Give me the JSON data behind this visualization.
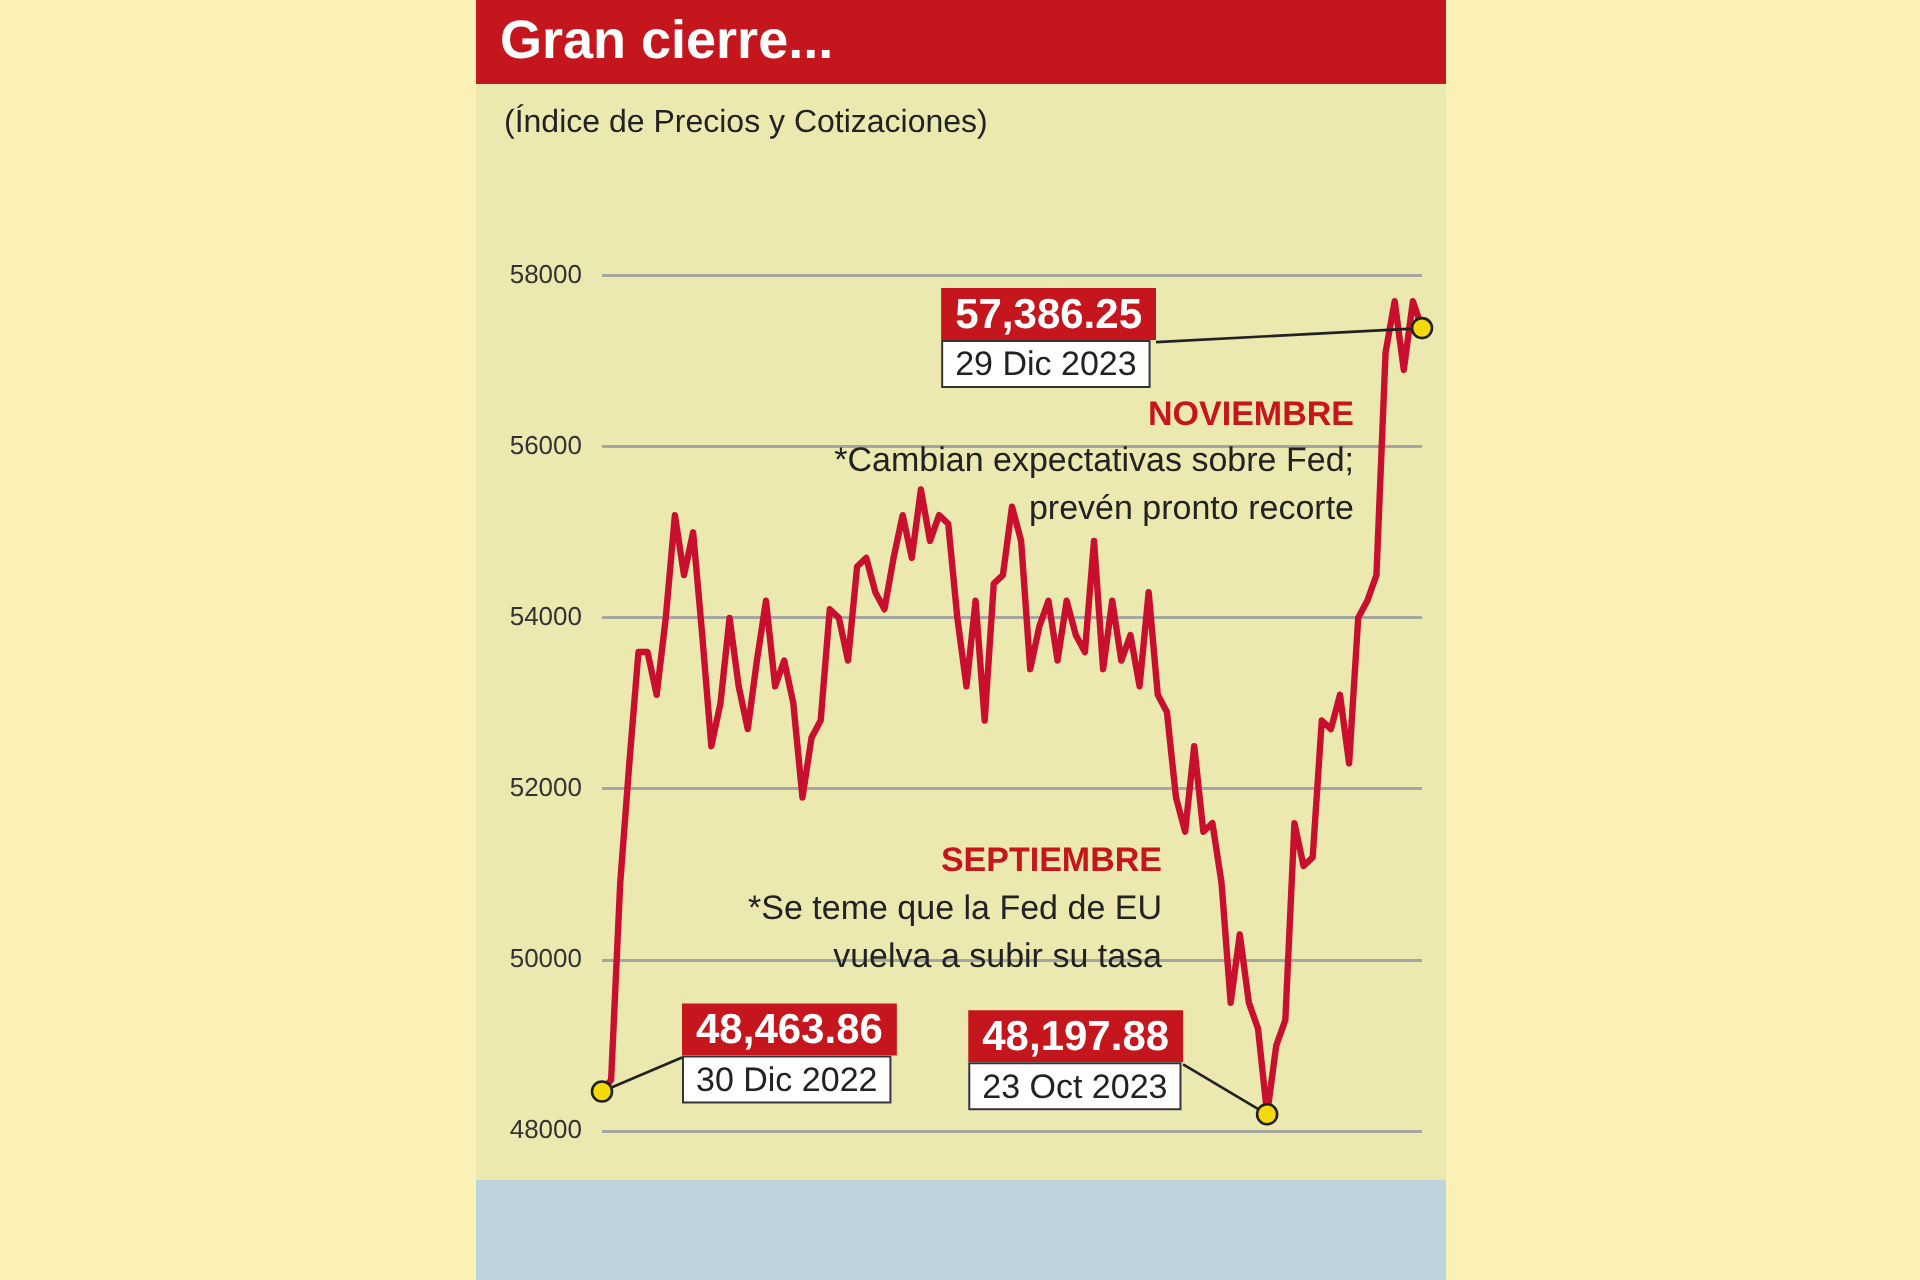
{
  "chart_data": {
    "type": "line",
    "title": "Gran cierre...",
    "subtitle": "(Índice de Precios y Cotizaciones)",
    "categories": [
      null,
      null,
      null,
      null,
      null,
      null,
      null,
      null,
      null,
      null,
      null,
      null,
      null,
      null,
      null,
      null,
      null,
      null,
      null,
      null,
      null,
      null,
      null,
      null,
      null,
      null,
      null,
      null,
      null,
      null,
      null,
      null,
      null,
      null,
      null,
      null,
      null,
      null,
      null,
      null,
      null,
      null,
      null,
      null,
      null,
      null,
      null,
      null,
      null,
      null,
      null,
      null,
      null,
      null,
      null,
      null,
      null,
      null,
      null,
      null,
      null,
      null,
      null,
      null,
      null,
      null,
      null,
      null,
      null,
      null,
      null,
      null,
      null,
      null,
      null,
      null,
      null,
      null,
      null,
      null,
      null,
      null,
      null,
      null,
      null,
      null,
      null,
      null,
      null,
      null,
      null
    ],
    "series": [
      {
        "color": "#c8102e",
        "values": [
          48463.86,
          48600,
          50900,
          52300,
          53600,
          53600,
          53100,
          54000,
          55200,
          54500,
          55000,
          53800,
          52500,
          53000,
          54000,
          53200,
          52700,
          53500,
          54200,
          53200,
          53500,
          53000,
          51900,
          52600,
          52800,
          54100,
          54000,
          53500,
          54600,
          54700,
          54300,
          54100,
          54700,
          55200,
          54700,
          55500,
          54900,
          55200,
          55100,
          54000,
          53200,
          54200,
          52800,
          54400,
          54500,
          55300,
          54900,
          53400,
          53900,
          54200,
          53500,
          54200,
          53800,
          53600,
          54900,
          53400,
          54200,
          53500,
          53800,
          53200,
          54300,
          53100,
          52900,
          51900,
          51500,
          52500,
          51500,
          51600,
          50900,
          49500,
          50300,
          49500,
          49200,
          48197.88,
          49000,
          49300,
          51600,
          51100,
          51200,
          52800,
          52700,
          53100,
          52300,
          54000,
          54200,
          54500,
          57100,
          57700,
          56900,
          57700,
          57386.25
        ]
      }
    ],
    "ylim": [
      48000,
      58000
    ],
    "yticks": [
      48000,
      50000,
      52000,
      54000,
      56000,
      58000
    ],
    "grid": "y",
    "legend": false,
    "marker": "none",
    "line_style": "solid",
    "annotations": [
      "48,463.86",
      "30 Dic 2022",
      "48,197.88",
      "23 Oct 2023",
      "57,386.25",
      "29 Dic 2023",
      "NOVIEMBRE",
      "*Cambian expectativas sobre Fed;\nprevén pronto recorte",
      "SEPTIEMBRE",
      "*Se teme que la Fed de EU\nvuelva a subir su tasa"
    ]
  }
}
